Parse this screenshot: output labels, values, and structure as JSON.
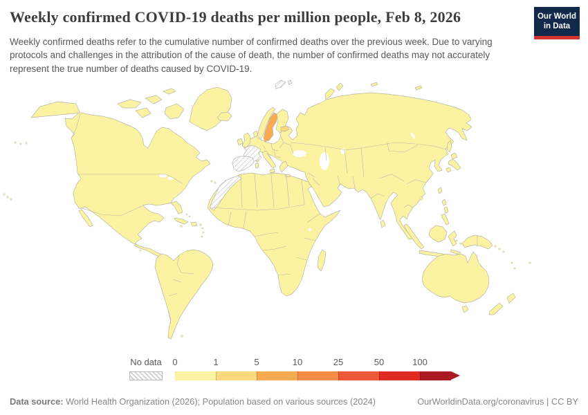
{
  "header": {
    "title": "Weekly confirmed COVID-19 deaths per million people, Feb 8, 2026",
    "subtitle": "Weekly confirmed deaths refer to the cumulative number of confirmed deaths over the previous week. Due to varying protocols and challenges in the attribution of the cause of death, the number of confirmed deaths may not accurately represent the true number of deaths caused by COVID-19.",
    "logo": {
      "line1": "Our World",
      "line2": "in Data"
    }
  },
  "legend": {
    "no_data_label": "No data",
    "ticks": [
      "0",
      "1",
      "5",
      "10",
      "25",
      "50",
      "100"
    ],
    "bins": [
      {
        "range": "0-1",
        "color": "#fbf2a2"
      },
      {
        "range": "1-5",
        "color": "#fbda7d"
      },
      {
        "range": "5-10",
        "color": "#f8ab51"
      },
      {
        "range": "10-25",
        "color": "#f68b45"
      },
      {
        "range": "25-50",
        "color": "#ef5837"
      },
      {
        "range": "50-100",
        "color": "#df2a22"
      },
      {
        "range": "100+",
        "color": "#ab1a23"
      }
    ]
  },
  "chart_data": {
    "type": "heatmap",
    "variant": "world-choropleth",
    "title": "Weekly confirmed COVID-19 deaths per million people",
    "date": "Feb 8, 2026",
    "unit": "weekly confirmed deaths per million people",
    "legend_position": "bottom",
    "bins": [
      "0-1",
      "1-5",
      "5-10",
      "10-25",
      "25-50",
      "50-100",
      "100+",
      "No data"
    ],
    "regions": [
      {
        "id": "sweden",
        "name": "Sweden",
        "bin": "5-10",
        "bin_index": 2
      },
      {
        "id": "estonia",
        "name": "Estonia",
        "bin": "1-5",
        "bin_index": 1
      },
      {
        "id": "france",
        "name": "France",
        "bin": "No data"
      },
      {
        "id": "iberia",
        "name": "Spain / Portugal",
        "bin": "No data"
      },
      {
        "id": "morocco",
        "name": "Morocco & Western Sahara",
        "bin": "No data"
      },
      {
        "id": "svalbard",
        "name": "Svalbard",
        "bin": "No data"
      },
      {
        "id": "default",
        "name": "All other countries shown",
        "bin": "0-1",
        "bin_index": 0
      }
    ]
  },
  "footer": {
    "source_label": "Data source:",
    "source_text": " World Health Organization (2026); Population based on various sources (2024)",
    "link": "OurWorldinData.org/coronavirus | CC BY"
  },
  "colors": {
    "logo_navy": "#12294b",
    "logo_red": "#d0342c",
    "land_border": "#b7b7a4",
    "no_data_stripe": "#cfcfcf"
  }
}
